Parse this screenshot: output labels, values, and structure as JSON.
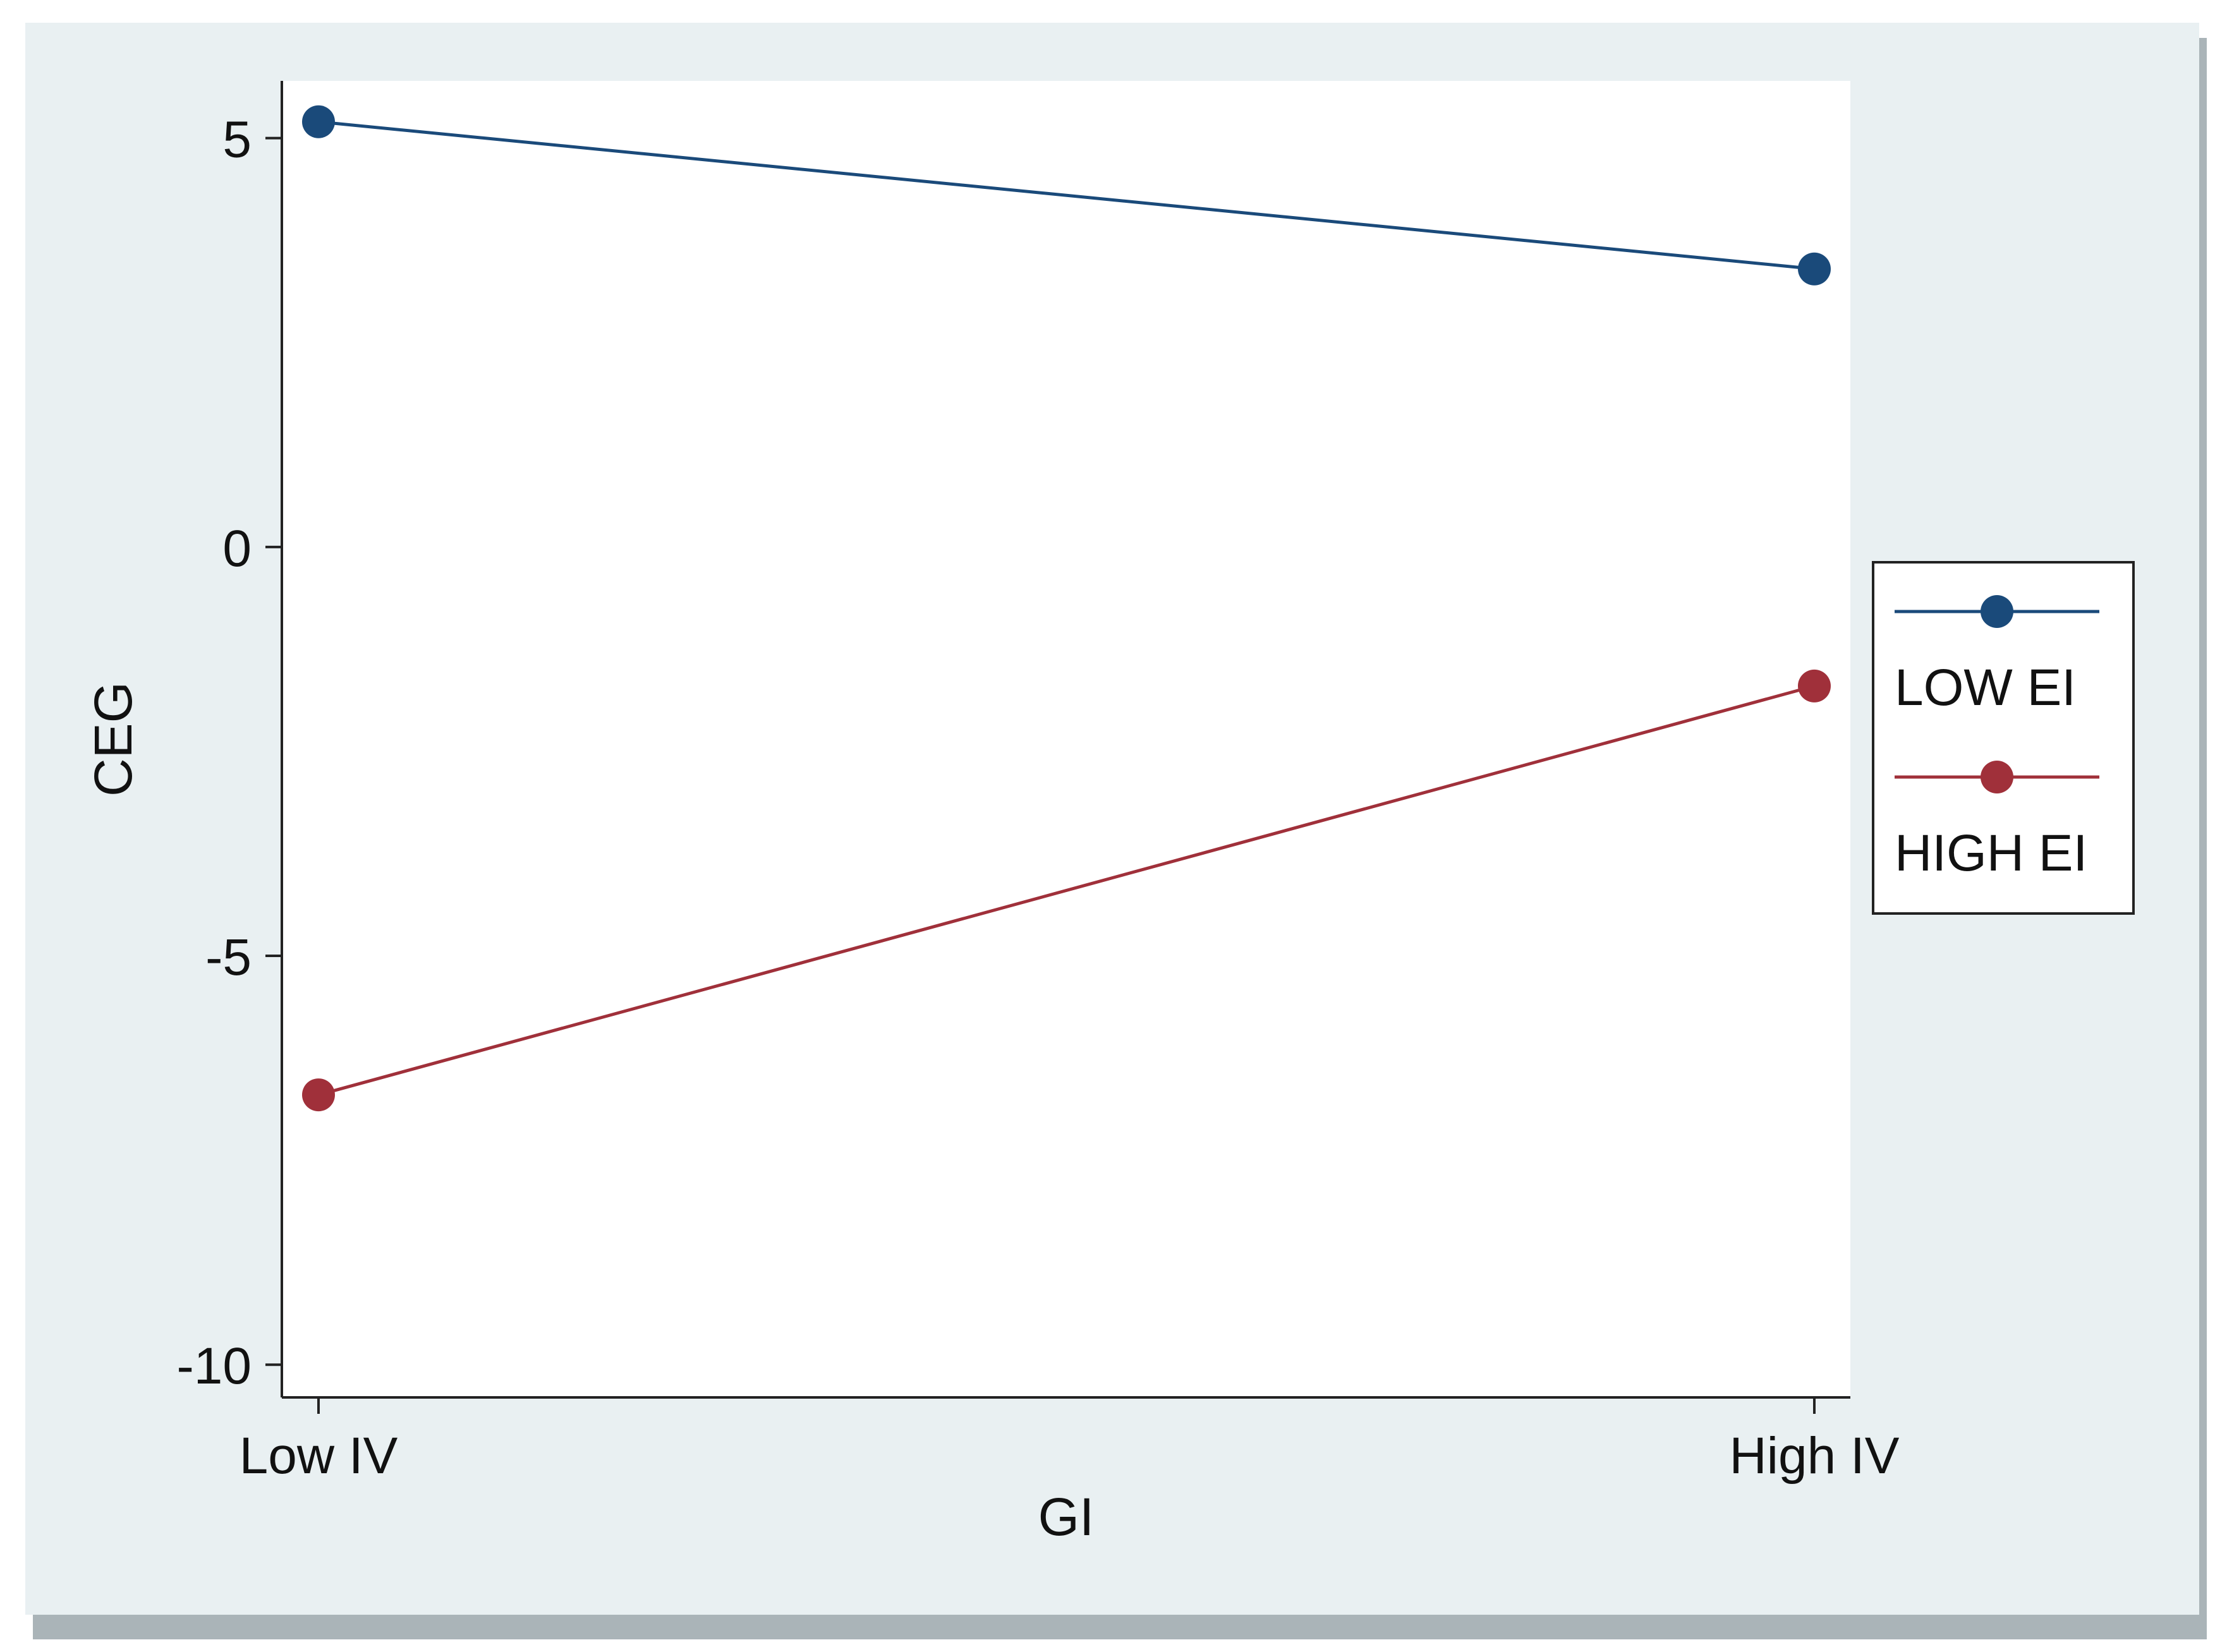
{
  "colors": {
    "frame_background": "#e9f0f2",
    "plot_background": "#ffffff",
    "shadow": "#aab4b8",
    "axis": "#222222",
    "legend_border": "#222222"
  },
  "chart_data": {
    "type": "line",
    "title": "",
    "xlabel": "GI",
    "ylabel": "CEG",
    "categories": [
      "Low IV",
      "High IV"
    ],
    "ylim": [
      -10.4,
      5.7
    ],
    "yticks": [
      -10,
      -5,
      0,
      5
    ],
    "ytick_labels": [
      "-10",
      "-5",
      "0",
      "5"
    ],
    "grid": false,
    "legend_placement": "right",
    "series": [
      {
        "name": "LOW EI",
        "values": [
          5.2,
          3.4
        ],
        "color": "#1a4a7a"
      },
      {
        "name": "HIGH EI",
        "values": [
          -6.7,
          -1.7
        ],
        "color": "#a0303a"
      }
    ]
  }
}
